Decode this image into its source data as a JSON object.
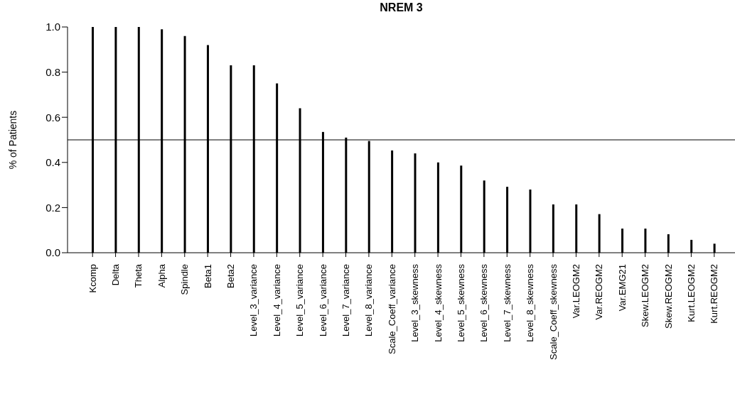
{
  "chart_data": {
    "type": "bar",
    "title": "NREM 3",
    "ylabel": "% of Patients",
    "categories": [
      "Kcomp",
      "Delta",
      "Theta",
      "Alpha",
      "Spindle",
      "Beta1",
      "Beta2",
      "Level_3_variance",
      "Level_4_variance",
      "Level_5_variance",
      "Level_6_variance",
      "Level_7_variance",
      "Level_8_variance",
      "Scale_Coeff_variance",
      "Level_3_skewness",
      "Level_4_skewness",
      "Level_5_skewness",
      "Level_6_skewness",
      "Level_7_skewness",
      "Level_8_skewness",
      "Scale_Coeff_skewness",
      "Var.LEOGM2",
      "Var.REOGM2",
      "Var.EMG21",
      "Skew.LEOGM2",
      "Skew.REOGM2",
      "Kurt.LEOGM2",
      "Kurt.REOGM2"
    ],
    "values": [
      1,
      1,
      1,
      0.99,
      0.96,
      0.92,
      0.83,
      0.83,
      0.75,
      0.64,
      0.535,
      0.51,
      0.495,
      0.453,
      0.44,
      0.4,
      0.386,
      0.32,
      0.292,
      0.28,
      0.214,
      0.214,
      0.171,
      0.107,
      0.107,
      0.082,
      0.057,
      0.04
    ],
    "color": "#000000",
    "ylim": [
      0,
      1
    ],
    "yticks": [
      {
        "value": 0,
        "label": "0.0"
      },
      {
        "value": 0.2,
        "label": "0.2"
      },
      {
        "value": 0.4,
        "label": "0.4"
      },
      {
        "value": 0.6,
        "label": "0.6"
      },
      {
        "value": 0.8,
        "label": "0.8"
      },
      {
        "value": 1,
        "label": "1.0"
      }
    ],
    "ref_lines": [
      {
        "axis": "y",
        "value": 0.5,
        "color": "#000000"
      }
    ],
    "grid": false,
    "legend": false
  }
}
